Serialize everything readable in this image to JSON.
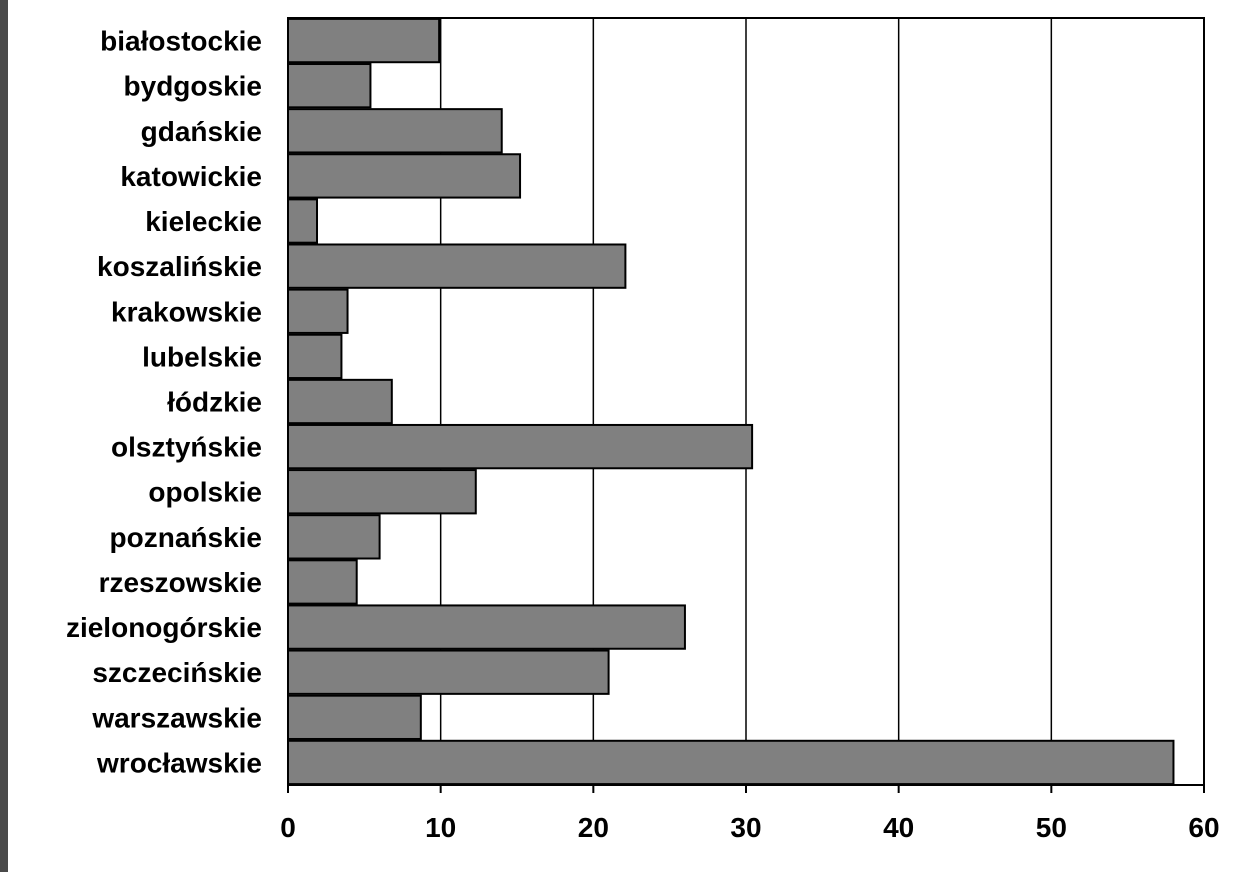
{
  "chart_data": {
    "type": "bar",
    "orientation": "horizontal",
    "categories": [
      "białostockie",
      "bydgoskie",
      "gdańskie",
      "katowickie",
      "kieleckie",
      "koszalińskie",
      "krakowskie",
      "lubelskie",
      "łódzkie",
      "olsztyńskie",
      "opolskie",
      "poznańskie",
      "rzeszowskie",
      "zielonogórskie",
      "szczecińskie",
      "warszawskie",
      "wrocławskie"
    ],
    "values": [
      9.9,
      5.4,
      14.0,
      15.2,
      1.9,
      22.1,
      3.9,
      3.5,
      6.8,
      30.4,
      12.3,
      6.0,
      4.5,
      26.0,
      21.0,
      8.7,
      58.0
    ],
    "xlim": [
      0,
      60
    ],
    "xticks": [
      "0",
      "10",
      "20",
      "30",
      "40",
      "50",
      "60"
    ],
    "title": "",
    "xlabel": "",
    "ylabel": "",
    "grid": "vertical",
    "colors": {
      "bar": "#808080",
      "bar_stroke": "#000000",
      "background": "#ffffff",
      "frame": "#4a4a4a"
    }
  }
}
